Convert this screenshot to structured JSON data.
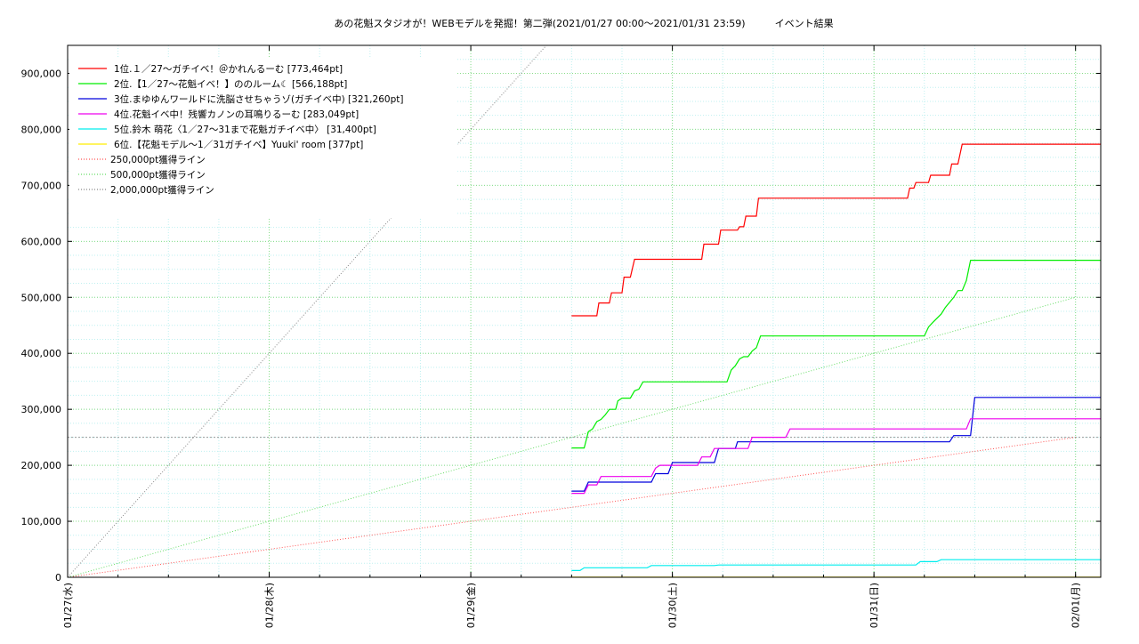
{
  "chart_data": {
    "type": "line",
    "title": "あの花魁スタジオが！WEBモデルを発掘！第二弾(2021/01/27 00:00〜2021/01/31 23:59)　　　イベント結果",
    "xlabel": "",
    "ylabel": "",
    "x_range": [
      "2021-01-27 00:00",
      "2021-02-01 03:00"
    ],
    "ylim": [
      0,
      950000
    ],
    "y_ticks": [
      0,
      100000,
      200000,
      300000,
      400000,
      500000,
      600000,
      700000,
      800000,
      900000
    ],
    "y_tick_labels": [
      "0",
      "100,000",
      "200,000",
      "300,000",
      "400,000",
      "500,000",
      "600,000",
      "700,000",
      "800,000",
      "900,000"
    ],
    "x_ticks": [
      "2021-01-27 00:00",
      "2021-01-28 00:00",
      "2021-01-29 00:00",
      "2021-01-30 00:00",
      "2021-01-31 00:00",
      "2021-02-01 00:00"
    ],
    "x_tick_labels": [
      "01/27(水)",
      "01/28(木)",
      "01/29(金)",
      "01/30(土)",
      "01/31(日)",
      "02/01(月)"
    ],
    "grid": true,
    "legend_position": "top-left",
    "series": [
      {
        "name": "1位.１／27〜ガチイベ！＠かれんるーむ [773,464pt]",
        "color": "#ff0000",
        "points": [
          [
            "2021-01-29 12:00",
            467000
          ],
          [
            "2021-01-29 15:00",
            467000
          ],
          [
            "2021-01-29 15:15",
            490000
          ],
          [
            "2021-01-29 16:30",
            490000
          ],
          [
            "2021-01-29 16:45",
            508000
          ],
          [
            "2021-01-29 18:00",
            508000
          ],
          [
            "2021-01-29 18:15",
            536000
          ],
          [
            "2021-01-29 19:00",
            536000
          ],
          [
            "2021-01-29 19:30",
            568000
          ],
          [
            "2021-01-30 03:30",
            568000
          ],
          [
            "2021-01-30 03:45",
            595000
          ],
          [
            "2021-01-30 05:30",
            595000
          ],
          [
            "2021-01-30 05:45",
            620000
          ],
          [
            "2021-01-30 07:45",
            620000
          ],
          [
            "2021-01-30 08:00",
            626000
          ],
          [
            "2021-01-30 08:30",
            626000
          ],
          [
            "2021-01-30 08:45",
            645000
          ],
          [
            "2021-01-30 10:00",
            645000
          ],
          [
            "2021-01-30 10:15",
            677000
          ],
          [
            "2021-01-31 04:00",
            677000
          ],
          [
            "2021-01-31 04:15",
            695000
          ],
          [
            "2021-01-31 04:45",
            695000
          ],
          [
            "2021-01-31 05:00",
            705000
          ],
          [
            "2021-01-31 06:30",
            705000
          ],
          [
            "2021-01-31 06:45",
            718000
          ],
          [
            "2021-01-31 09:00",
            718000
          ],
          [
            "2021-01-31 09:15",
            738000
          ],
          [
            "2021-01-31 10:00",
            738000
          ],
          [
            "2021-01-31 10:30",
            773464
          ],
          [
            "2021-02-01 03:00",
            773464
          ]
        ]
      },
      {
        "name": "2位.【1／27〜花魁イベ！】ののルーム☾ [566,188pt]",
        "color": "#00ee00",
        "points": [
          [
            "2021-01-29 12:00",
            231000
          ],
          [
            "2021-01-29 13:30",
            231000
          ],
          [
            "2021-01-29 14:00",
            260000
          ],
          [
            "2021-01-29 14:30",
            265000
          ],
          [
            "2021-01-29 15:00",
            278000
          ],
          [
            "2021-01-29 15:30",
            282000
          ],
          [
            "2021-01-29 16:00",
            290000
          ],
          [
            "2021-01-29 16:30",
            300000
          ],
          [
            "2021-01-29 17:15",
            300000
          ],
          [
            "2021-01-29 17:30",
            315000
          ],
          [
            "2021-01-29 18:00",
            320000
          ],
          [
            "2021-01-29 19:00",
            320000
          ],
          [
            "2021-01-29 19:30",
            333000
          ],
          [
            "2021-01-29 20:00",
            336000
          ],
          [
            "2021-01-29 20:30",
            349000
          ],
          [
            "2021-01-30 06:30",
            349000
          ],
          [
            "2021-01-30 07:00",
            370000
          ],
          [
            "2021-01-30 07:30",
            378000
          ],
          [
            "2021-01-30 08:00",
            390000
          ],
          [
            "2021-01-30 08:30",
            394000
          ],
          [
            "2021-01-30 09:00",
            394000
          ],
          [
            "2021-01-30 09:30",
            404000
          ],
          [
            "2021-01-30 10:00",
            410000
          ],
          [
            "2021-01-30 10:30",
            431000
          ],
          [
            "2021-01-31 06:00",
            431000
          ],
          [
            "2021-01-31 06:30",
            447000
          ],
          [
            "2021-01-31 07:00",
            455000
          ],
          [
            "2021-01-31 08:00",
            470000
          ],
          [
            "2021-01-31 08:30",
            482000
          ],
          [
            "2021-01-31 09:30",
            500000
          ],
          [
            "2021-01-31 10:00",
            512000
          ],
          [
            "2021-01-31 10:30",
            512000
          ],
          [
            "2021-01-31 11:00",
            530000
          ],
          [
            "2021-01-31 11:30",
            566188
          ],
          [
            "2021-02-01 03:00",
            566188
          ]
        ]
      },
      {
        "name": "3位.まゆゆんワールドに洗脳させちゃうゾ(ガチイベ中) [321,260pt]",
        "color": "#0000dd",
        "points": [
          [
            "2021-01-29 12:00",
            154000
          ],
          [
            "2021-01-29 13:30",
            154000
          ],
          [
            "2021-01-29 14:00",
            170000
          ],
          [
            "2021-01-29 21:30",
            170000
          ],
          [
            "2021-01-29 22:00",
            185000
          ],
          [
            "2021-01-29 23:30",
            185000
          ],
          [
            "2021-01-30 00:00",
            205000
          ],
          [
            "2021-01-30 05:00",
            205000
          ],
          [
            "2021-01-30 05:30",
            230000
          ],
          [
            "2021-01-30 07:30",
            230000
          ],
          [
            "2021-01-30 07:45",
            242000
          ],
          [
            "2021-01-31 09:00",
            242000
          ],
          [
            "2021-01-31 09:30",
            253000
          ],
          [
            "2021-01-31 11:30",
            253000
          ],
          [
            "2021-01-31 12:00",
            321260
          ],
          [
            "2021-02-01 03:00",
            321260
          ]
        ]
      },
      {
        "name": "4位.花魁イベ中！残響カノンの耳鳴りるーむ [283,049pt]",
        "color": "#ee00ee",
        "points": [
          [
            "2021-01-29 12:00",
            150000
          ],
          [
            "2021-01-29 13:30",
            150000
          ],
          [
            "2021-01-29 14:00",
            165000
          ],
          [
            "2021-01-29 15:00",
            165000
          ],
          [
            "2021-01-29 15:30",
            180000
          ],
          [
            "2021-01-29 21:30",
            180000
          ],
          [
            "2021-01-29 22:00",
            195000
          ],
          [
            "2021-01-29 22:30",
            200000
          ],
          [
            "2021-01-30 03:00",
            200000
          ],
          [
            "2021-01-30 03:30",
            215000
          ],
          [
            "2021-01-30 04:30",
            215000
          ],
          [
            "2021-01-30 05:00",
            230000
          ],
          [
            "2021-01-30 09:00",
            230000
          ],
          [
            "2021-01-30 09:30",
            250000
          ],
          [
            "2021-01-30 13:30",
            250000
          ],
          [
            "2021-01-30 14:00",
            265000
          ],
          [
            "2021-01-31 11:00",
            265000
          ],
          [
            "2021-01-31 11:30",
            283049
          ],
          [
            "2021-02-01 03:00",
            283049
          ]
        ]
      },
      {
        "name": "5位.鈴木 萌花〈1／27〜31まで花魁ガチイベ中〉 [31,400pt]",
        "color": "#00eeee",
        "points": [
          [
            "2021-01-29 12:00",
            12000
          ],
          [
            "2021-01-29 13:00",
            12000
          ],
          [
            "2021-01-29 13:30",
            17000
          ],
          [
            "2021-01-29 21:00",
            17000
          ],
          [
            "2021-01-29 21:30",
            21000
          ],
          [
            "2021-01-30 05:00",
            21000
          ],
          [
            "2021-01-30 05:30",
            22000
          ],
          [
            "2021-01-31 05:00",
            22000
          ],
          [
            "2021-01-31 05:30",
            28000
          ],
          [
            "2021-01-31 07:30",
            28000
          ],
          [
            "2021-01-31 08:00",
            31400
          ],
          [
            "2021-02-01 03:00",
            31400
          ]
        ]
      },
      {
        "name": "6位.【花魁モデル〜1／31ガチイベ】Yuuki' room [377pt]",
        "color": "#ffee00",
        "points": [
          [
            "2021-01-29 12:00",
            377
          ],
          [
            "2021-02-01 03:00",
            377
          ]
        ]
      }
    ],
    "reference_lines": [
      {
        "name": "250,000pt獲得ライン",
        "color": "#ff5555",
        "style": "dotted",
        "points": [
          [
            "2021-01-27 00:00",
            0
          ],
          [
            "2021-02-01 00:00",
            250000
          ]
        ]
      },
      {
        "name": "500,000pt獲得ライン",
        "color": "#66dd66",
        "style": "dotted",
        "points": [
          [
            "2021-01-27 00:00",
            0
          ],
          [
            "2021-02-01 00:00",
            500000
          ]
        ]
      },
      {
        "name": "2,000,000pt獲得ライン",
        "color": "#888888",
        "style": "dotted",
        "points": [
          [
            "2021-01-27 00:00",
            0
          ],
          [
            "2021-02-01 00:00",
            2000000
          ]
        ]
      }
    ],
    "horizontal_lines": [
      {
        "y": 250000,
        "color": "#999999",
        "style": "dotted"
      }
    ]
  }
}
